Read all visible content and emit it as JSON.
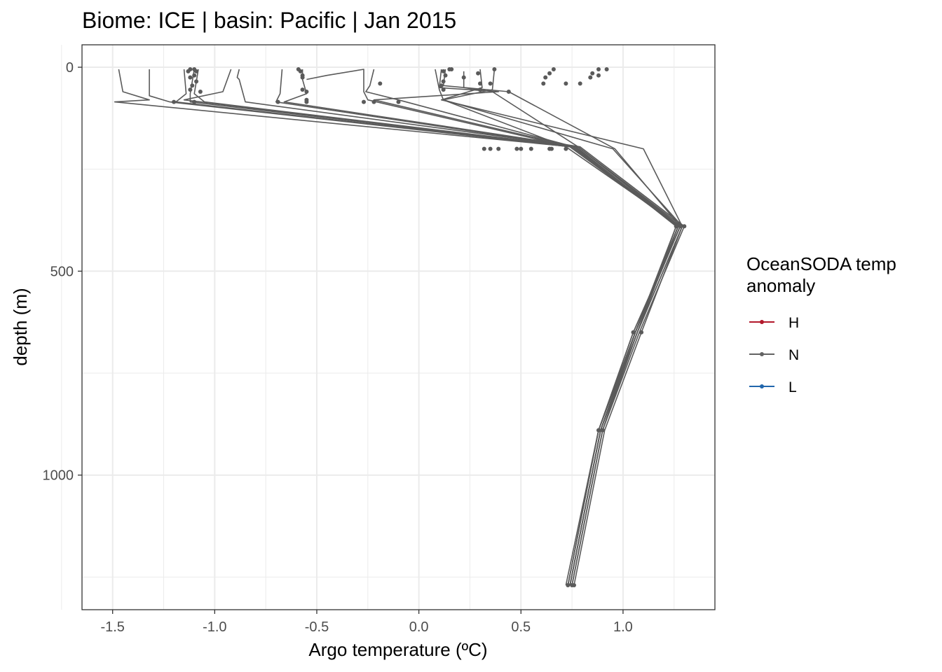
{
  "chart_data": {
    "type": "line",
    "title": "Biome: ICE | basin: Pacific  | Jan 2015",
    "xlabel": "Argo temperature (ºC)",
    "ylabel": "depth (m)",
    "xlim": [
      -1.65,
      1.45
    ],
    "ylim": [
      1330,
      -55
    ],
    "y_reversed": true,
    "grid": true,
    "x_ticks": [
      -1.5,
      -1.0,
      -0.5,
      0.0,
      0.5,
      1.0
    ],
    "x_tick_labels": [
      "-1.5",
      "-1.0",
      "-0.5",
      "0.0",
      "0.5",
      "1.0"
    ],
    "y_ticks": [
      0,
      500,
      1000
    ],
    "y_tick_labels": [
      "0",
      "500",
      "1000"
    ],
    "legend": {
      "title_lines": [
        "OceanSODA temp",
        "anomaly"
      ],
      "placement": "right",
      "entries": [
        {
          "label": "H",
          "color": "#b2182b"
        },
        {
          "label": "N",
          "color": "#636363"
        },
        {
          "label": "L",
          "color": "#2166ac"
        }
      ]
    },
    "series_color": "#5a5a5a",
    "series": [
      {
        "anomaly": "N",
        "x": [
          -1.47,
          -1.45,
          -1.32,
          -1.49,
          0.75,
          1.28,
          1.05,
          0.88,
          0.73
        ],
        "y": [
          5,
          60,
          80,
          85,
          195,
          390,
          650,
          890,
          1270
        ]
      },
      {
        "anomaly": "N",
        "x": [
          -1.32,
          -1.32,
          -1.22,
          0.74,
          1.27,
          1.06,
          0.89,
          0.74
        ],
        "y": [
          5,
          70,
          85,
          195,
          390,
          650,
          890,
          1270
        ]
      },
      {
        "anomaly": "N",
        "x": [
          -1.15,
          -1.14,
          -1.19,
          0.76,
          1.27,
          1.06,
          0.89,
          0.74
        ],
        "y": [
          5,
          65,
          85,
          195,
          390,
          650,
          890,
          1270
        ]
      },
      {
        "anomaly": "N",
        "x": [
          -1.1,
          -1.12,
          -1.12,
          0.78,
          1.28,
          1.06,
          0.88,
          0.73
        ],
        "y": [
          5,
          65,
          85,
          195,
          390,
          650,
          890,
          1270
        ]
      },
      {
        "anomaly": "N",
        "x": [
          -1.08,
          -1.1,
          -1.05,
          0.77,
          1.26,
          1.07,
          0.9,
          0.75
        ],
        "y": [
          5,
          65,
          85,
          195,
          390,
          650,
          890,
          1270
        ]
      },
      {
        "anomaly": "N",
        "x": [
          -0.92,
          -0.96,
          -1.15,
          0.74,
          1.28,
          1.06,
          0.89,
          0.74
        ],
        "y": [
          5,
          60,
          80,
          195,
          390,
          650,
          890,
          1270
        ]
      },
      {
        "anomaly": "N",
        "x": [
          -0.88,
          -0.89,
          -0.88,
          -0.85,
          0.78,
          1.29,
          1.07,
          0.89,
          0.74
        ],
        "y": [
          5,
          25,
          30,
          85,
          195,
          390,
          650,
          890,
          1270
        ]
      },
      {
        "anomaly": "N",
        "x": [
          -0.67,
          -0.68,
          -0.7,
          0.77,
          1.26,
          1.06,
          0.88,
          0.73
        ],
        "y": [
          5,
          65,
          85,
          195,
          390,
          650,
          890,
          1270
        ]
      },
      {
        "anomaly": "N",
        "x": [
          -0.57,
          -0.57,
          -0.55,
          -0.66,
          0.79,
          1.3,
          1.08,
          0.9,
          0.75
        ],
        "y": [
          5,
          30,
          65,
          85,
          195,
          390,
          650,
          890,
          1270
        ]
      },
      {
        "anomaly": "N",
        "x": [
          -0.55,
          -0.45,
          -0.27,
          -0.27,
          -0.25,
          0.74,
          1.27,
          1.06,
          0.89,
          0.74
        ],
        "y": [
          30,
          20,
          5,
          60,
          80,
          195,
          390,
          650,
          890,
          1270
        ]
      },
      {
        "anomaly": "N",
        "x": [
          -0.22,
          -0.24,
          -0.26,
          -0.1,
          0.76,
          1.27,
          1.07,
          0.89,
          0.74
        ],
        "y": [
          5,
          45,
          60,
          80,
          195,
          390,
          650,
          890,
          1270
        ]
      },
      {
        "anomaly": "N",
        "x": [
          0.08,
          0.1,
          0.12,
          0.72,
          1.28,
          1.05,
          0.88,
          0.72
        ],
        "y": [
          5,
          55,
          80,
          195,
          390,
          650,
          890,
          1270
        ]
      },
      {
        "anomaly": "N",
        "x": [
          0.11,
          0.1,
          0.39,
          -0.22,
          0.76,
          1.27,
          1.06,
          0.89,
          0.74
        ],
        "y": [
          5,
          50,
          60,
          80,
          195,
          390,
          650,
          890,
          1270
        ]
      },
      {
        "anomaly": "N",
        "x": [
          0.13,
          0.12,
          0.44,
          0.96,
          1.28,
          1.06,
          0.88,
          0.73
        ],
        "y": [
          5,
          45,
          60,
          200,
          390,
          650,
          890,
          1270
        ]
      },
      {
        "anomaly": "N",
        "x": [
          0.22,
          0.22,
          0.36,
          0.78,
          1.27,
          1.06,
          0.9,
          0.75
        ],
        "y": [
          10,
          50,
          60,
          195,
          390,
          650,
          890,
          1270
        ]
      },
      {
        "anomaly": "N",
        "x": [
          0.3,
          0.31,
          0.11,
          1.1,
          1.29,
          1.09,
          0.91,
          0.76
        ],
        "y": [
          5,
          50,
          80,
          200,
          390,
          650,
          890,
          1270
        ]
      },
      {
        "anomaly": "N",
        "x": [
          0.37,
          0.36,
          0.12,
          0.95,
          1.29,
          1.07,
          0.89,
          0.74
        ],
        "y": [
          5,
          55,
          80,
          200,
          390,
          650,
          890,
          1270
        ]
      }
    ],
    "points": [
      {
        "x": -1.12,
        "y": 5
      },
      {
        "x": -1.1,
        "y": 5
      },
      {
        "x": -1.13,
        "y": 10
      },
      {
        "x": -1.09,
        "y": 10
      },
      {
        "x": -1.1,
        "y": 20
      },
      {
        "x": -1.12,
        "y": 25
      },
      {
        "x": -1.09,
        "y": 35
      },
      {
        "x": -1.11,
        "y": 45
      },
      {
        "x": -1.12,
        "y": 55
      },
      {
        "x": -1.07,
        "y": 60
      },
      {
        "x": -1.2,
        "y": 85
      },
      {
        "x": -1.1,
        "y": 85
      },
      {
        "x": -0.59,
        "y": 5
      },
      {
        "x": -0.58,
        "y": 10
      },
      {
        "x": -0.57,
        "y": 20
      },
      {
        "x": -0.57,
        "y": 25
      },
      {
        "x": -0.57,
        "y": 55
      },
      {
        "x": -0.55,
        "y": 60
      },
      {
        "x": -0.55,
        "y": 80
      },
      {
        "x": -0.55,
        "y": 85
      },
      {
        "x": -0.69,
        "y": 85
      },
      {
        "x": -0.19,
        "y": 40
      },
      {
        "x": -0.27,
        "y": 85
      },
      {
        "x": -0.22,
        "y": 85
      },
      {
        "x": -0.1,
        "y": 85
      },
      {
        "x": 0.15,
        "y": 5
      },
      {
        "x": 0.16,
        "y": 5
      },
      {
        "x": 0.12,
        "y": 10
      },
      {
        "x": 0.13,
        "y": 20
      },
      {
        "x": 0.12,
        "y": 35
      },
      {
        "x": 0.11,
        "y": 45
      },
      {
        "x": 0.12,
        "y": 55
      },
      {
        "x": 0.22,
        "y": 25
      },
      {
        "x": 0.29,
        "y": 15
      },
      {
        "x": 0.37,
        "y": 5
      },
      {
        "x": 0.3,
        "y": 40
      },
      {
        "x": 0.35,
        "y": 40
      },
      {
        "x": 0.44,
        "y": 60
      },
      {
        "x": 0.3,
        "y": 55
      },
      {
        "x": 0.66,
        "y": 5
      },
      {
        "x": 0.64,
        "y": 15
      },
      {
        "x": 0.62,
        "y": 25
      },
      {
        "x": 0.61,
        "y": 40
      },
      {
        "x": 0.72,
        "y": 40
      },
      {
        "x": 0.79,
        "y": 40
      },
      {
        "x": 0.85,
        "y": 15
      },
      {
        "x": 0.84,
        "y": 25
      },
      {
        "x": 0.88,
        "y": 5
      },
      {
        "x": 0.88,
        "y": 20
      },
      {
        "x": 0.92,
        "y": 5
      },
      {
        "x": 0.32,
        "y": 200
      },
      {
        "x": 0.35,
        "y": 200
      },
      {
        "x": 0.39,
        "y": 200
      },
      {
        "x": 0.48,
        "y": 200
      },
      {
        "x": 0.5,
        "y": 200
      },
      {
        "x": 0.55,
        "y": 200
      },
      {
        "x": 0.64,
        "y": 200
      },
      {
        "x": 0.65,
        "y": 200
      },
      {
        "x": 0.72,
        "y": 200
      },
      {
        "x": 1.26,
        "y": 390
      },
      {
        "x": 1.28,
        "y": 390
      },
      {
        "x": 1.3,
        "y": 390
      },
      {
        "x": 1.05,
        "y": 650
      },
      {
        "x": 1.09,
        "y": 650
      },
      {
        "x": 0.88,
        "y": 890
      },
      {
        "x": 0.9,
        "y": 890
      },
      {
        "x": 0.73,
        "y": 1270
      },
      {
        "x": 0.75,
        "y": 1270
      },
      {
        "x": 0.76,
        "y": 1270
      }
    ]
  }
}
